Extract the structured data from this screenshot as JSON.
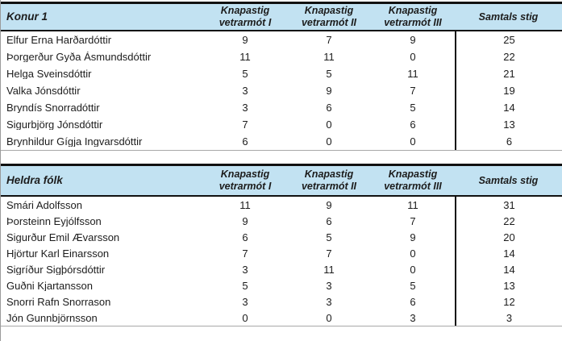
{
  "colors": {
    "header_bg": "#c2e2f2",
    "border_dark": "#111111",
    "border_light": "#a8a8a8",
    "text": "#1c1c1c"
  },
  "tables": [
    {
      "title": "Konur 1",
      "point_columns": [
        {
          "line1": "Knapastig",
          "line2": "vetrarmót I"
        },
        {
          "line1": "Knapastig",
          "line2": "vetrarmót II"
        },
        {
          "line1": "Knapastig",
          "line2": "vetrarmót III"
        }
      ],
      "total_label": "Samtals stig",
      "rows": [
        {
          "name": "Elfur Erna Harðardóttir",
          "values": [
            9,
            7,
            9
          ],
          "total": 25
        },
        {
          "name": "Þorgerður Gyða Ásmundsdóttir",
          "values": [
            11,
            11,
            0
          ],
          "total": 22
        },
        {
          "name": "Helga Sveinsdóttir",
          "values": [
            5,
            5,
            11
          ],
          "total": 21
        },
        {
          "name": "Valka Jónsdóttir",
          "values": [
            3,
            9,
            7
          ],
          "total": 19
        },
        {
          "name": "Bryndís Snorradóttir",
          "values": [
            3,
            6,
            5
          ],
          "total": 14
        },
        {
          "name": "Sigurbjörg Jónsdóttir",
          "values": [
            7,
            0,
            6
          ],
          "total": 13
        },
        {
          "name": "Brynhildur Gígja Ingvarsdóttir",
          "values": [
            6,
            0,
            0
          ],
          "total": 6
        }
      ]
    },
    {
      "title": "Heldra fólk",
      "point_columns": [
        {
          "line1": "Knapastig",
          "line2": "vetrarmót I"
        },
        {
          "line1": "Knapastig",
          "line2": "vetrarmót II"
        },
        {
          "line1": "Knapastig",
          "line2": "vetrarmót III"
        }
      ],
      "total_label": "Samtals stig",
      "rows": [
        {
          "name": "Smári Adolfsson",
          "values": [
            11,
            9,
            11
          ],
          "total": 31
        },
        {
          "name": "Þorsteinn Eyjólfsson",
          "values": [
            9,
            6,
            7
          ],
          "total": 22
        },
        {
          "name": "Sigurður Emil Ævarsson",
          "values": [
            6,
            5,
            9
          ],
          "total": 20
        },
        {
          "name": "Hjörtur Karl Einarsson",
          "values": [
            7,
            7,
            0
          ],
          "total": 14
        },
        {
          "name": "Sigríður Sigþórsdóttir",
          "values": [
            3,
            11,
            0
          ],
          "total": 14
        },
        {
          "name": "Guðni Kjartansson",
          "values": [
            5,
            3,
            5
          ],
          "total": 13
        },
        {
          "name": "Snorri Rafn Snorrason",
          "values": [
            3,
            3,
            6
          ],
          "total": 12
        },
        {
          "name": "Jón Gunnbjörnsson",
          "values": [
            0,
            0,
            3
          ],
          "total": 3
        }
      ]
    }
  ]
}
